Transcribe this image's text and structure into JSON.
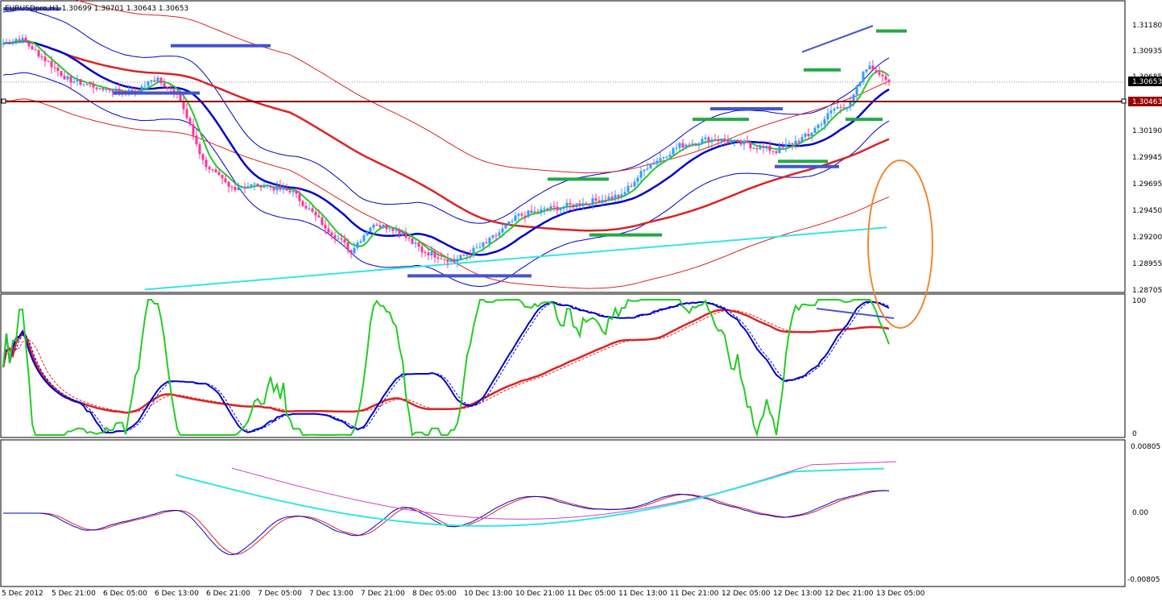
{
  "chart_data": [
    {
      "type": "candlestick",
      "title": "EURUSDpro,H1  1.30699 1.30701 1.30643 1.30653",
      "y_ticks": [
        "1.31180",
        "1.30935",
        "1.30685",
        "1.30190",
        "1.29945",
        "1.29695",
        "1.29450",
        "1.29200",
        "1.28955",
        "1.28705"
      ],
      "ylim": [
        1.2866,
        1.3142
      ],
      "current_price_label": "1.30653",
      "current_price": 1.30653,
      "horizontal_line_label": "1.30463",
      "horizontal_line": 1.30463,
      "x_ticks": [
        "5 Dec 2012",
        "5 Dec 21:00",
        "6 Dec 05:00",
        "6 Dec 13:00",
        "6 Dec 21:00",
        "7 Dec 05:00",
        "7 Dec 13:00",
        "7 Dec 21:00",
        "8 Dec 05:00",
        "10 Dec 13:00",
        "10 Dec 21:00",
        "11 Dec 05:00",
        "11 Dec 13:00",
        "11 Dec 21:00",
        "12 Dec 05:00",
        "12 Dec 13:00",
        "12 Dec 21:00",
        "13 Dec 05:00"
      ],
      "key_closes": [
        {
          "bar": 0,
          "close": 1.3102
        },
        {
          "bar": 5,
          "close": 1.3108
        },
        {
          "bar": 10,
          "close": 1.3095
        },
        {
          "bar": 20,
          "close": 1.3068
        },
        {
          "bar": 30,
          "close": 1.306
        },
        {
          "bar": 40,
          "close": 1.3055
        },
        {
          "bar": 48,
          "close": 1.307
        },
        {
          "bar": 55,
          "close": 1.3048
        },
        {
          "bar": 62,
          "close": 1.299
        },
        {
          "bar": 70,
          "close": 1.2965
        },
        {
          "bar": 80,
          "close": 1.2968
        },
        {
          "bar": 90,
          "close": 1.296
        },
        {
          "bar": 100,
          "close": 1.2928
        },
        {
          "bar": 108,
          "close": 1.2905
        },
        {
          "bar": 115,
          "close": 1.2932
        },
        {
          "bar": 122,
          "close": 1.2925
        },
        {
          "bar": 130,
          "close": 1.2905
        },
        {
          "bar": 140,
          "close": 1.2895
        },
        {
          "bar": 150,
          "close": 1.2912
        },
        {
          "bar": 160,
          "close": 1.2938
        },
        {
          "bar": 170,
          "close": 1.2945
        },
        {
          "bar": 180,
          "close": 1.295
        },
        {
          "bar": 192,
          "close": 1.2958
        },
        {
          "bar": 200,
          "close": 1.2985
        },
        {
          "bar": 210,
          "close": 1.3005
        },
        {
          "bar": 220,
          "close": 1.3012
        },
        {
          "bar": 232,
          "close": 1.3005
        },
        {
          "bar": 240,
          "close": 1.3
        },
        {
          "bar": 250,
          "close": 1.3015
        },
        {
          "bar": 258,
          "close": 1.304
        },
        {
          "bar": 263,
          "close": 1.3045
        },
        {
          "bar": 268,
          "close": 1.308
        },
        {
          "bar": 272,
          "close": 1.3075
        },
        {
          "bar": 275,
          "close": 1.30653
        }
      ]
    },
    {
      "type": "line",
      "title": "",
      "y_ticks": [
        "100",
        "0"
      ],
      "ylim": [
        0,
        100
      ]
    },
    {
      "type": "line",
      "title": "",
      "y_ticks": [
        "0.00805",
        "0.00",
        "-0.00805"
      ],
      "ylim": [
        -0.00805,
        0.00805
      ]
    }
  ],
  "colors": {
    "bull": "#3399ff",
    "bear": "#ff3399",
    "green_line": "#22cc22",
    "blue_line": "#0000cc",
    "red_line": "#dd2222",
    "cyan_line": "#33e5e5",
    "magenta_line": "#cc44cc",
    "annotation_blue": "#4455cc",
    "annotation_green": "#22aa44",
    "circle": "#ee8833",
    "hline_label_bg": "#990000",
    "price_label_bg": "#000000"
  }
}
